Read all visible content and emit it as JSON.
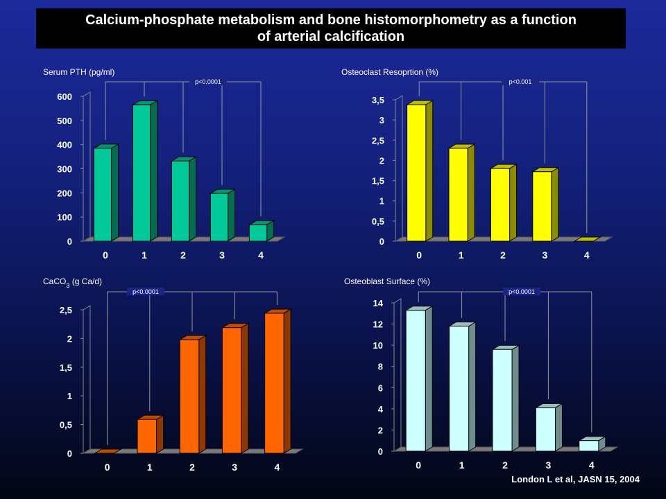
{
  "header": {
    "title_line1": "Calcium-phosphate metabolism and bone histomorphometry as a function",
    "title_line2": "of arterial calcification"
  },
  "citation": "London L et al, JASN 15, 2004",
  "colors": {
    "pth": "#00c896",
    "resorption": "#ffff00",
    "caco3": "#ff6600",
    "osteoblast": "#ccffff"
  },
  "chart_data": [
    {
      "type": "bar",
      "title": "Serum PTH (pg/ml)",
      "categories": [
        "0",
        "1",
        "2",
        "3",
        "4"
      ],
      "values": [
        385,
        565,
        332,
        198,
        68
      ],
      "ylim": [
        0,
        600
      ],
      "yticks": [
        0,
        100,
        200,
        300,
        400,
        500,
        600
      ],
      "ytick_labels": [
        "0",
        "100",
        "200",
        "300",
        "400",
        "500",
        "600"
      ],
      "pvalue": "p<0.0001",
      "color": "#00c896"
    },
    {
      "type": "bar",
      "title": "Osteoclast Resoprtion (%)",
      "categories": [
        "0",
        "1",
        "2",
        "3",
        "4"
      ],
      "values": [
        3.38,
        2.3,
        1.8,
        1.72,
        0
      ],
      "ylim": [
        0,
        3.5
      ],
      "yticks": [
        0,
        0.5,
        1,
        1.5,
        2,
        2.5,
        3,
        3.5
      ],
      "ytick_labels": [
        "0",
        "0,5",
        "1",
        "1,5",
        "2",
        "2,5",
        "3",
        "3,5"
      ],
      "pvalue": "p<0.001",
      "color": "#ffff00"
    },
    {
      "type": "bar",
      "title": "CaCO",
      "title_sub": "3",
      "title_suffix": " (g Ca/d)",
      "categories": [
        "0",
        "1",
        "2",
        "3",
        "4"
      ],
      "values": [
        0,
        0.59,
        1.98,
        2.19,
        2.44
      ],
      "ylim": [
        0,
        2.5
      ],
      "yticks": [
        0,
        0.5,
        1,
        1.5,
        2,
        2.5
      ],
      "ytick_labels": [
        "0",
        "0,5",
        "1",
        "1,5",
        "2",
        "2,5"
      ],
      "pvalue": "p<0.0001",
      "color": "#ff6600"
    },
    {
      "type": "bar",
      "title": "Osteoblast Surface (%)",
      "categories": [
        "0",
        "1",
        "2",
        "3",
        "4"
      ],
      "values": [
        13.3,
        11.8,
        9.6,
        4.1,
        1
      ],
      "ylim": [
        0,
        14
      ],
      "yticks": [
        0,
        2,
        4,
        6,
        8,
        10,
        12,
        14
      ],
      "ytick_labels": [
        "0",
        "2",
        "4",
        "6",
        "8",
        "10",
        "12",
        "14"
      ],
      "pvalue": "p<0.0001",
      "color": "#ccffff"
    }
  ]
}
